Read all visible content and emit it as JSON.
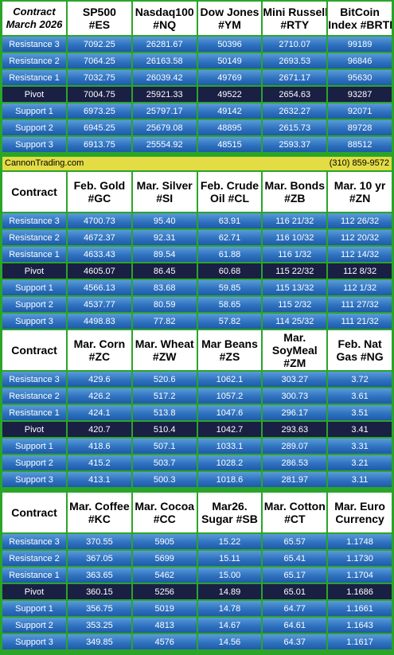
{
  "row_labels": [
    "Resistance 3",
    "Resistance 2",
    "Resistance 1",
    "Pivot",
    "Support 1",
    "Support 2",
    "Support 3"
  ],
  "banner": {
    "site": "CannonTrading.com",
    "phone": "(310) 859-9572"
  },
  "sections": [
    {
      "first_header": [
        "Contract",
        "March 2026"
      ],
      "columns": [
        {
          "title": [
            "SP500",
            "#ES"
          ],
          "values": [
            "7092.25",
            "7064.25",
            "7032.75",
            "7004.75",
            "6973.25",
            "6945.25",
            "6913.75"
          ]
        },
        {
          "title": [
            "Nasdaq100",
            "#NQ"
          ],
          "values": [
            "26281.67",
            "26163.58",
            "26039.42",
            "25921.33",
            "25797.17",
            "25679.08",
            "25554.92"
          ]
        },
        {
          "title": [
            "Dow Jones",
            "#YM"
          ],
          "values": [
            "50396",
            "50149",
            "49769",
            "49522",
            "49142",
            "48895",
            "48515"
          ]
        },
        {
          "title": [
            "Mini Russell",
            "#RTY"
          ],
          "values": [
            "2710.07",
            "2693.53",
            "2671.17",
            "2654.63",
            "2632.27",
            "2615.73",
            "2593.37"
          ]
        },
        {
          "title": [
            "BitCoin",
            "Index #BRTI"
          ],
          "values": [
            "99189",
            "96846",
            "95630",
            "93287",
            "92071",
            "89728",
            "88512"
          ]
        }
      ]
    },
    {
      "first_header": [
        "Contract",
        ""
      ],
      "columns": [
        {
          "title": [
            "Feb. Gold",
            "#GC"
          ],
          "values": [
            "4700.73",
            "4672.37",
            "4633.43",
            "4605.07",
            "4566.13",
            "4537.77",
            "4498.83"
          ]
        },
        {
          "title": [
            "Mar. Silver",
            "#SI"
          ],
          "values": [
            "95.40",
            "92.31",
            "89.54",
            "86.45",
            "83.68",
            "80.59",
            "77.82"
          ]
        },
        {
          "title": [
            "Feb. Crude",
            "Oil #CL"
          ],
          "values": [
            "63.91",
            "62.71",
            "61.88",
            "60.68",
            "59.85",
            "58.65",
            "57.82"
          ]
        },
        {
          "title": [
            "Mar. Bonds",
            "#ZB"
          ],
          "values": [
            "116 21/32",
            "116 10/32",
            "116  1/32",
            "115 22/32",
            "115 13/32",
            "115  2/32",
            "114 25/32"
          ]
        },
        {
          "title": [
            "Mar. 10 yr",
            "#ZN"
          ],
          "values": [
            "112 26/32",
            "112 20/32",
            "112 14/32",
            "112  8/32",
            "112  1/32",
            "111 27/32",
            "111 21/32"
          ]
        }
      ]
    },
    {
      "first_header": [
        "Contract",
        ""
      ],
      "columns": [
        {
          "title": [
            "Mar. Corn",
            "#ZC"
          ],
          "values": [
            "429.6",
            "426.2",
            "424.1",
            "420.7",
            "418.6",
            "415.2",
            "413.1"
          ]
        },
        {
          "title": [
            "Mar.  Wheat",
            "#ZW"
          ],
          "values": [
            "520.6",
            "517.2",
            "513.8",
            "510.4",
            "507.1",
            "503.7",
            "500.3"
          ]
        },
        {
          "title": [
            "Mar Beans",
            "#ZS"
          ],
          "values": [
            "1062.1",
            "1057.2",
            "1047.6",
            "1042.7",
            "1033.1",
            "1028.2",
            "1018.6"
          ]
        },
        {
          "title": [
            "Mar.",
            "SoyMeal",
            "#ZM"
          ],
          "values": [
            "303.27",
            "300.73",
            "296.17",
            "293.63",
            "289.07",
            "286.53",
            "281.97"
          ]
        },
        {
          "title": [
            "Feb. Nat",
            "Gas #NG"
          ],
          "values": [
            "3.72",
            "3.61",
            "3.51",
            "3.41",
            "3.31",
            "3.21",
            "3.11"
          ]
        }
      ]
    },
    {
      "first_header": [
        "Contract",
        ""
      ],
      "columns": [
        {
          "title": [
            "Mar. Coffee",
            "#KC"
          ],
          "values": [
            "370.55",
            "367.05",
            "363.65",
            "360.15",
            "356.75",
            "353.25",
            "349.85"
          ]
        },
        {
          "title": [
            "Mar. Cocoa",
            "#CC"
          ],
          "values": [
            "5905",
            "5699",
            "5462",
            "5256",
            "5019",
            "4813",
            "4576"
          ]
        },
        {
          "title": [
            "Mar26.",
            "Sugar #SB"
          ],
          "values": [
            "15.22",
            "15.11",
            "15.00",
            "14.89",
            "14.78",
            "14.67",
            "14.56"
          ]
        },
        {
          "title": [
            "Mar. Cotton",
            "#CT"
          ],
          "values": [
            "65.57",
            "65.41",
            "65.17",
            "65.01",
            "64.77",
            "64.61",
            "64.37"
          ]
        },
        {
          "title": [
            "Mar. Euro",
            "Currency"
          ],
          "values": [
            "1.1748",
            "1.1730",
            "1.1704",
            "1.1686",
            "1.1661",
            "1.1643",
            "1.1617"
          ]
        }
      ]
    }
  ]
}
